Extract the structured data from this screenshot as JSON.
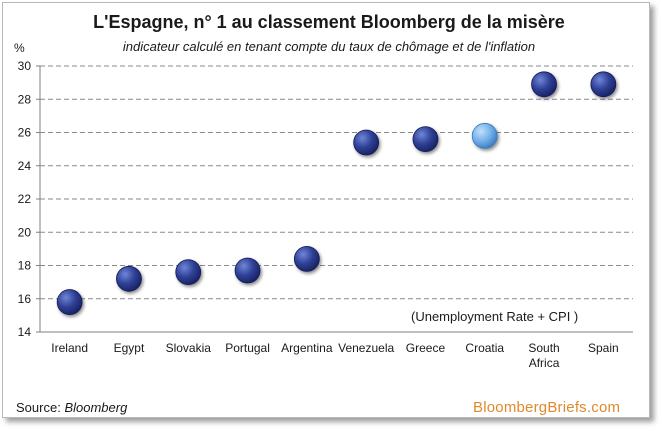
{
  "chart_data": {
    "type": "scatter",
    "title": "L'Espagne, n° 1 au classement Bloomberg de la misère",
    "subtitle": "indicateur calculé en tenant compte du taux de chômage et de l'inflation",
    "ylabel": "%",
    "annotation": "(Unemployment Rate + CPI )",
    "categories": [
      "Ireland",
      "Egypt",
      "Slovakia",
      "Portugal",
      "Argentina",
      "Venezuela",
      "Greece",
      "Croatia",
      "South Africa",
      "Spain"
    ],
    "values": [
      15.8,
      17.2,
      17.6,
      17.7,
      18.4,
      25.4,
      25.6,
      25.8,
      28.9,
      28.9
    ],
    "highlight": "Croatia",
    "ylim": [
      14,
      30
    ],
    "yticks": [
      14,
      16,
      18,
      20,
      22,
      24,
      26,
      28,
      30
    ],
    "grid": true,
    "colors": {
      "point": "#2b3a8c",
      "highlight": "#6aa9e6",
      "grid": "#8a8a8a"
    }
  },
  "footer": {
    "source_label": "Source:",
    "source_name": "Bloomberg",
    "brand": "BloombergBriefs.com"
  }
}
